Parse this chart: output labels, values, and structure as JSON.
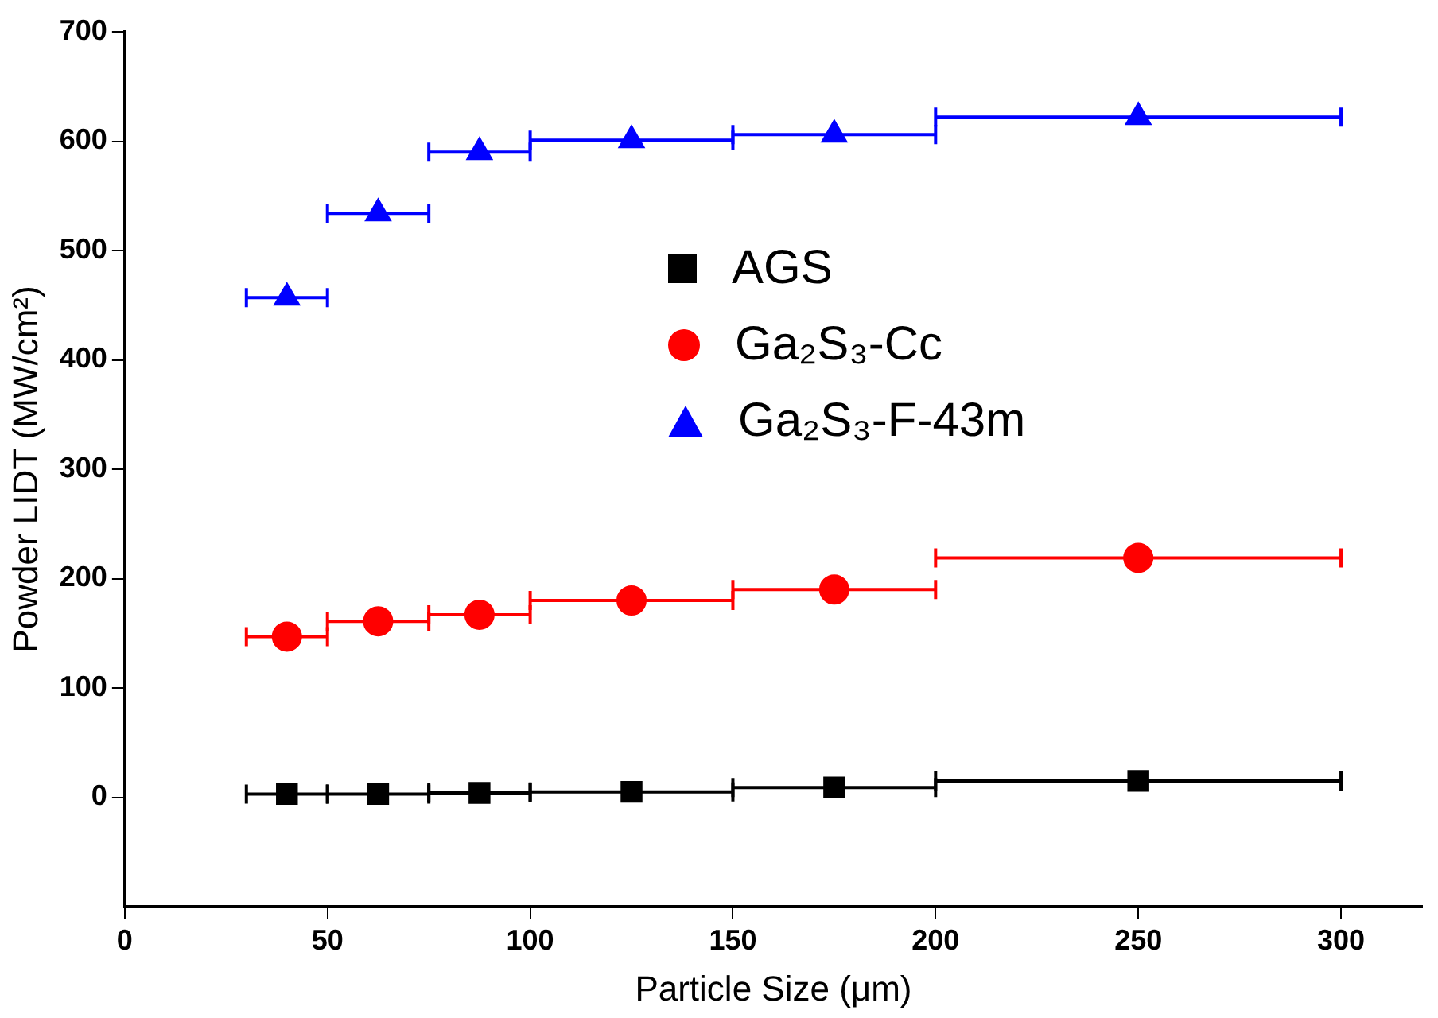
{
  "chart_data": {
    "type": "scatter",
    "xlabel": "Particle Size (μm)",
    "ylabel": "Powder LIDT (MW/cm²)",
    "x": [
      40,
      62.5,
      87.5,
      125,
      175,
      250
    ],
    "series": [
      {
        "name": "AGS",
        "color": "#000000",
        "marker": "square",
        "values": [
          3,
          3,
          4,
          5,
          9,
          15
        ],
        "xerrors": [
          10,
          12.5,
          12.5,
          25,
          25,
          50
        ]
      },
      {
        "name": "Ga₂S₃-Cc",
        "color": "#ff0000",
        "marker": "circle",
        "values": [
          147,
          161,
          167,
          180,
          190,
          219
        ],
        "xerrors": [
          10,
          12.5,
          12.5,
          25,
          25,
          50
        ]
      },
      {
        "name": "Ga₂S₃-F-43m",
        "color": "#0000ff",
        "marker": "triangle",
        "values": [
          457,
          534,
          590,
          601,
          606,
          622
        ],
        "xerrors": [
          10,
          12.5,
          12.5,
          25,
          25,
          50
        ]
      }
    ],
    "xlim": [
      0,
      320
    ],
    "xticks": [
      0,
      50,
      100,
      150,
      200,
      250,
      300
    ],
    "ylim": [
      -100,
      700
    ],
    "yticks": [
      0,
      100,
      200,
      300,
      400,
      500,
      600,
      700
    ],
    "grid": false,
    "legend": "top right"
  }
}
